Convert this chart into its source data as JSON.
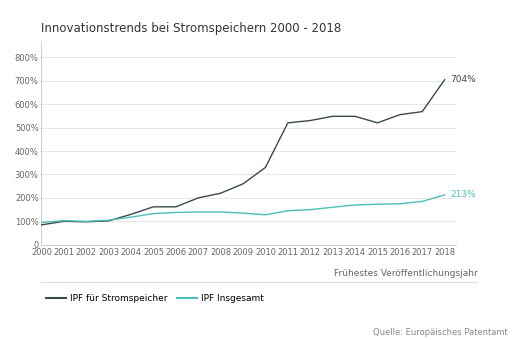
{
  "title": "Innovationstrends bei Stromspeichern 2000 - 2018",
  "xlabel": "Frühestes Veröffentlichungsjahr",
  "source": "Quelle: Europäisches Patentamt",
  "legend_label1": "IPF für Stromspeicher",
  "legend_label2": "IPF Insgesamt",
  "years": [
    2000,
    2001,
    2002,
    2003,
    2004,
    2005,
    2006,
    2007,
    2008,
    2009,
    2010,
    2011,
    2012,
    2013,
    2014,
    2015,
    2016,
    2017,
    2018
  ],
  "ipf_storage": [
    85,
    100,
    98,
    102,
    130,
    162,
    162,
    200,
    220,
    260,
    330,
    520,
    530,
    548,
    548,
    520,
    555,
    568,
    704
  ],
  "ipf_total": [
    95,
    103,
    100,
    105,
    118,
    133,
    138,
    140,
    140,
    135,
    128,
    145,
    150,
    160,
    170,
    173,
    175,
    185,
    213
  ],
  "color_storage": "#3a4a4a",
  "color_total": "#4dbdbd",
  "ylim_min": 0,
  "ylim_max": 870,
  "yticks": [
    0,
    100,
    200,
    300,
    400,
    500,
    600,
    700,
    800
  ],
  "ytick_labels": [
    "0",
    "100%",
    "200%",
    "300%",
    "400%",
    "500%",
    "600%",
    "700%",
    "800%"
  ],
  "annotation_704": "704%",
  "annotation_213": "213%",
  "bg_color": "#ffffff",
  "title_fontsize": 8.5,
  "axis_fontsize": 6.5,
  "tick_fontsize": 6,
  "annotation_fontsize": 6.5,
  "legend_fontsize": 6.5,
  "source_fontsize": 6
}
